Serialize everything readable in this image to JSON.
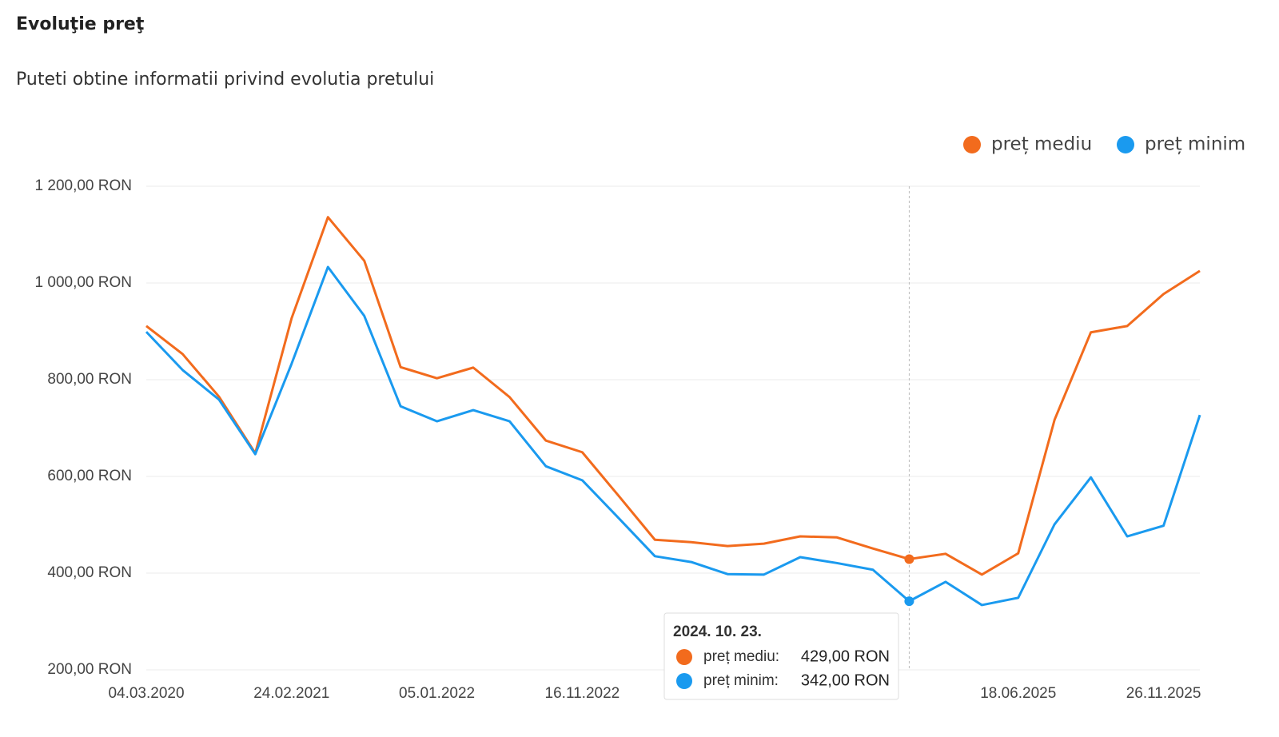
{
  "header": {
    "title": "Evoluţie preţ",
    "subtitle": "Puteti obtine informatii privind evolutia pretului"
  },
  "chart_data": {
    "type": "line",
    "categories": [
      "04.03.2020",
      null,
      null,
      null,
      "24.02.2021",
      null,
      null,
      null,
      "05.01.2022",
      null,
      null,
      null,
      "16.11.2022",
      null,
      null,
      null,
      null,
      null,
      null,
      null,
      null,
      null,
      null,
      null,
      "18.06.2025",
      null,
      null,
      null,
      "26.11.2025",
      null
    ],
    "series": [
      {
        "name": "preț mediu",
        "color": "#f26b1d",
        "values": [
          911,
          853,
          765,
          648,
          927,
          1136,
          1046,
          826,
          803,
          825,
          764,
          674,
          650,
          560,
          469,
          464,
          456,
          461,
          476,
          474,
          451,
          429,
          440,
          397,
          441,
          717,
          898,
          911,
          977,
          1025
        ]
      },
      {
        "name": "preț minim",
        "color": "#1a9aef",
        "values": [
          899,
          820,
          759,
          646,
          833,
          1033,
          932,
          745,
          714,
          737,
          714,
          621,
          592,
          514,
          435,
          423,
          398,
          397,
          433,
          421,
          407,
          342,
          382,
          334,
          349,
          501,
          598,
          476,
          498,
          727
        ]
      }
    ],
    "ylim": [
      200,
      1200
    ],
    "yticks": [
      {
        "value": 200,
        "label": "200,00 RON"
      },
      {
        "value": 400,
        "label": "400,00 RON"
      },
      {
        "value": 600,
        "label": "600,00 RON"
      },
      {
        "value": 800,
        "label": "800,00 RON"
      },
      {
        "value": 1000,
        "label": "1 000,00 RON"
      },
      {
        "value": 1200,
        "label": "1 200,00 RON"
      }
    ],
    "grid": true,
    "legend": "top-right",
    "tooltip": {
      "date": "2024. 10. 23.",
      "rows": [
        {
          "label": "preț mediu:",
          "value": "429,00 RON"
        },
        {
          "label": "preț minim:",
          "value": "342,00 RON"
        }
      ]
    }
  }
}
